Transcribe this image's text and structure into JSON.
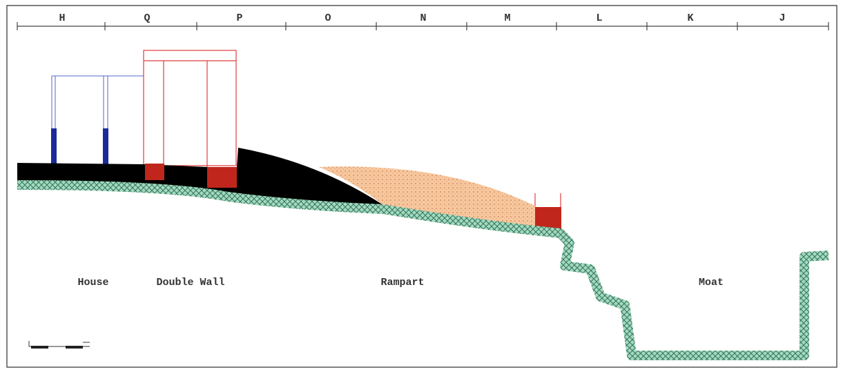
{
  "grid_labels": [
    "H",
    "Q",
    "P",
    "O",
    "N",
    "M",
    "L",
    "K",
    "J"
  ],
  "labels": {
    "house": "House",
    "double_wall": "Double Wall",
    "rampart": "Rampart",
    "moat": "Moat"
  }
}
